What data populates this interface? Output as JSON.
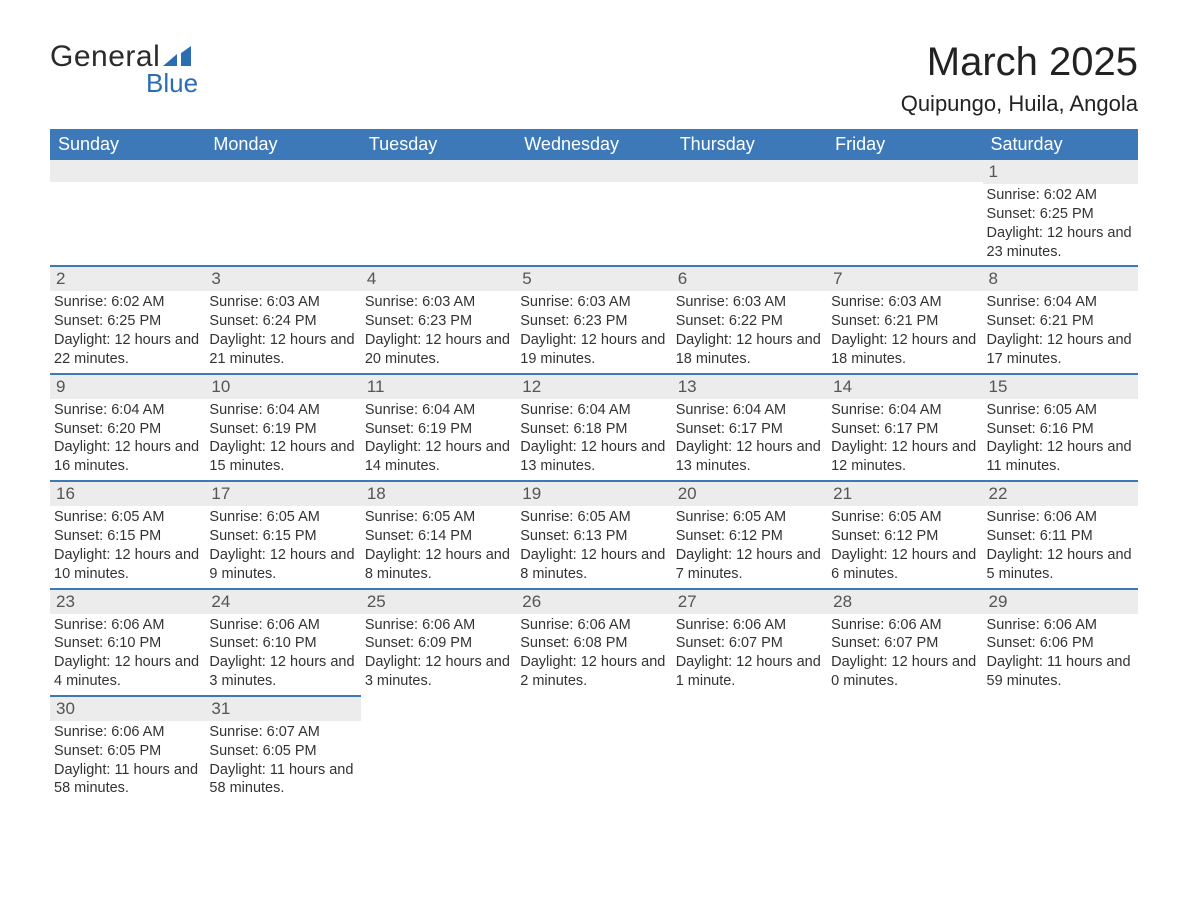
{
  "brand": {
    "general": "General",
    "blue": "Blue"
  },
  "title": "March 2025",
  "location": "Quipungo, Huila, Angola",
  "colors": {
    "header_bg": "#3d79b8",
    "header_text": "#ffffff",
    "daynum_bg": "#ececec",
    "daynum_text": "#555555",
    "body_text": "#333333",
    "brand_blue": "#2b6db2",
    "page_bg": "#ffffff"
  },
  "weekdays": [
    "Sunday",
    "Monday",
    "Tuesday",
    "Wednesday",
    "Thursday",
    "Friday",
    "Saturday"
  ],
  "weeks": [
    [
      null,
      null,
      null,
      null,
      null,
      null,
      {
        "n": "1",
        "sr": "Sunrise: 6:02 AM",
        "ss": "Sunset: 6:25 PM",
        "dl": "Daylight: 12 hours and 23 minutes."
      }
    ],
    [
      {
        "n": "2",
        "sr": "Sunrise: 6:02 AM",
        "ss": "Sunset: 6:25 PM",
        "dl": "Daylight: 12 hours and 22 minutes."
      },
      {
        "n": "3",
        "sr": "Sunrise: 6:03 AM",
        "ss": "Sunset: 6:24 PM",
        "dl": "Daylight: 12 hours and 21 minutes."
      },
      {
        "n": "4",
        "sr": "Sunrise: 6:03 AM",
        "ss": "Sunset: 6:23 PM",
        "dl": "Daylight: 12 hours and 20 minutes."
      },
      {
        "n": "5",
        "sr": "Sunrise: 6:03 AM",
        "ss": "Sunset: 6:23 PM",
        "dl": "Daylight: 12 hours and 19 minutes."
      },
      {
        "n": "6",
        "sr": "Sunrise: 6:03 AM",
        "ss": "Sunset: 6:22 PM",
        "dl": "Daylight: 12 hours and 18 minutes."
      },
      {
        "n": "7",
        "sr": "Sunrise: 6:03 AM",
        "ss": "Sunset: 6:21 PM",
        "dl": "Daylight: 12 hours and 18 minutes."
      },
      {
        "n": "8",
        "sr": "Sunrise: 6:04 AM",
        "ss": "Sunset: 6:21 PM",
        "dl": "Daylight: 12 hours and 17 minutes."
      }
    ],
    [
      {
        "n": "9",
        "sr": "Sunrise: 6:04 AM",
        "ss": "Sunset: 6:20 PM",
        "dl": "Daylight: 12 hours and 16 minutes."
      },
      {
        "n": "10",
        "sr": "Sunrise: 6:04 AM",
        "ss": "Sunset: 6:19 PM",
        "dl": "Daylight: 12 hours and 15 minutes."
      },
      {
        "n": "11",
        "sr": "Sunrise: 6:04 AM",
        "ss": "Sunset: 6:19 PM",
        "dl": "Daylight: 12 hours and 14 minutes."
      },
      {
        "n": "12",
        "sr": "Sunrise: 6:04 AM",
        "ss": "Sunset: 6:18 PM",
        "dl": "Daylight: 12 hours and 13 minutes."
      },
      {
        "n": "13",
        "sr": "Sunrise: 6:04 AM",
        "ss": "Sunset: 6:17 PM",
        "dl": "Daylight: 12 hours and 13 minutes."
      },
      {
        "n": "14",
        "sr": "Sunrise: 6:04 AM",
        "ss": "Sunset: 6:17 PM",
        "dl": "Daylight: 12 hours and 12 minutes."
      },
      {
        "n": "15",
        "sr": "Sunrise: 6:05 AM",
        "ss": "Sunset: 6:16 PM",
        "dl": "Daylight: 12 hours and 11 minutes."
      }
    ],
    [
      {
        "n": "16",
        "sr": "Sunrise: 6:05 AM",
        "ss": "Sunset: 6:15 PM",
        "dl": "Daylight: 12 hours and 10 minutes."
      },
      {
        "n": "17",
        "sr": "Sunrise: 6:05 AM",
        "ss": "Sunset: 6:15 PM",
        "dl": "Daylight: 12 hours and 9 minutes."
      },
      {
        "n": "18",
        "sr": "Sunrise: 6:05 AM",
        "ss": "Sunset: 6:14 PM",
        "dl": "Daylight: 12 hours and 8 minutes."
      },
      {
        "n": "19",
        "sr": "Sunrise: 6:05 AM",
        "ss": "Sunset: 6:13 PM",
        "dl": "Daylight: 12 hours and 8 minutes."
      },
      {
        "n": "20",
        "sr": "Sunrise: 6:05 AM",
        "ss": "Sunset: 6:12 PM",
        "dl": "Daylight: 12 hours and 7 minutes."
      },
      {
        "n": "21",
        "sr": "Sunrise: 6:05 AM",
        "ss": "Sunset: 6:12 PM",
        "dl": "Daylight: 12 hours and 6 minutes."
      },
      {
        "n": "22",
        "sr": "Sunrise: 6:06 AM",
        "ss": "Sunset: 6:11 PM",
        "dl": "Daylight: 12 hours and 5 minutes."
      }
    ],
    [
      {
        "n": "23",
        "sr": "Sunrise: 6:06 AM",
        "ss": "Sunset: 6:10 PM",
        "dl": "Daylight: 12 hours and 4 minutes."
      },
      {
        "n": "24",
        "sr": "Sunrise: 6:06 AM",
        "ss": "Sunset: 6:10 PM",
        "dl": "Daylight: 12 hours and 3 minutes."
      },
      {
        "n": "25",
        "sr": "Sunrise: 6:06 AM",
        "ss": "Sunset: 6:09 PM",
        "dl": "Daylight: 12 hours and 3 minutes."
      },
      {
        "n": "26",
        "sr": "Sunrise: 6:06 AM",
        "ss": "Sunset: 6:08 PM",
        "dl": "Daylight: 12 hours and 2 minutes."
      },
      {
        "n": "27",
        "sr": "Sunrise: 6:06 AM",
        "ss": "Sunset: 6:07 PM",
        "dl": "Daylight: 12 hours and 1 minute."
      },
      {
        "n": "28",
        "sr": "Sunrise: 6:06 AM",
        "ss": "Sunset: 6:07 PM",
        "dl": "Daylight: 12 hours and 0 minutes."
      },
      {
        "n": "29",
        "sr": "Sunrise: 6:06 AM",
        "ss": "Sunset: 6:06 PM",
        "dl": "Daylight: 11 hours and 59 minutes."
      }
    ],
    [
      {
        "n": "30",
        "sr": "Sunrise: 6:06 AM",
        "ss": "Sunset: 6:05 PM",
        "dl": "Daylight: 11 hours and 58 minutes."
      },
      {
        "n": "31",
        "sr": "Sunrise: 6:07 AM",
        "ss": "Sunset: 6:05 PM",
        "dl": "Daylight: 11 hours and 58 minutes."
      },
      null,
      null,
      null,
      null,
      null
    ]
  ]
}
